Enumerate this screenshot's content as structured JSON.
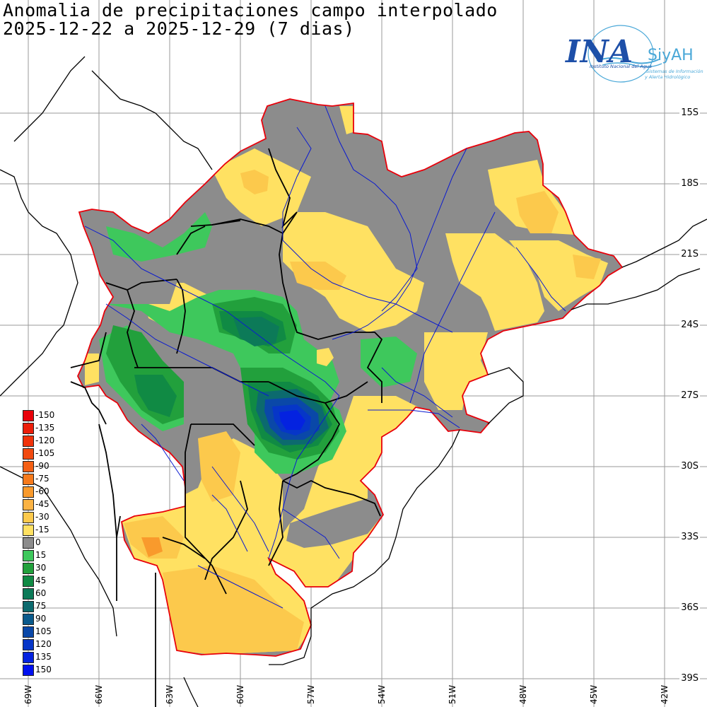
{
  "title_line1": "Anomalia de precipitaciones campo interpolado",
  "title_line2": "2025-12-22 a 2025-12-29 (7 dias)",
  "logo": {
    "wordmark": "INA",
    "siyah": "SiyAH",
    "institute": "Instituto Nacional del Agua",
    "system_line1": "Sistemas de Información",
    "system_line2": "y Alerta Hidrológico"
  },
  "lat_labels": [
    "15S",
    "18S",
    "21S",
    "24S",
    "27S",
    "30S",
    "33S",
    "36S",
    "39S"
  ],
  "lon_labels": [
    "69W",
    "66W",
    "63W",
    "60W",
    "57W",
    "54W",
    "51W",
    "48W",
    "45W",
    "42W"
  ],
  "legend": [
    {
      "label": "-150",
      "color": "#e8000a"
    },
    {
      "label": "-135",
      "color": "#ec1e0a"
    },
    {
      "label": "-120",
      "color": "#f0320a"
    },
    {
      "label": "-105",
      "color": "#f24a10"
    },
    {
      "label": "-90",
      "color": "#f45f14"
    },
    {
      "label": "-75",
      "color": "#f67a1c"
    },
    {
      "label": "-60",
      "color": "#f99a2c"
    },
    {
      "label": "-45",
      "color": "#fbb344"
    },
    {
      "label": "-30",
      "color": "#fcc94c"
    },
    {
      "label": "-15",
      "color": "#ffe162"
    },
    {
      "label": "0",
      "color": "#8c8c8c"
    },
    {
      "label": "15",
      "color": "#3ec85c"
    },
    {
      "label": "30",
      "color": "#22a03c"
    },
    {
      "label": "45",
      "color": "#108a44"
    },
    {
      "label": "60",
      "color": "#0c7a58"
    },
    {
      "label": "75",
      "color": "#0c6a6e"
    },
    {
      "label": "90",
      "color": "#0a5a8c"
    },
    {
      "label": "105",
      "color": "#0a48a8"
    },
    {
      "label": "120",
      "color": "#0636c8"
    },
    {
      "label": "135",
      "color": "#0422e0"
    },
    {
      "label": "150",
      "color": "#0010f0"
    }
  ],
  "colors": {
    "basin_outline": "#e8000a",
    "rivers": "#0a1ad0",
    "borders": "#000000",
    "coast": "#000000",
    "grid": "#9a9a9a",
    "logo_blue": "#1d4fa8",
    "logo_light": "#4aa8d8"
  }
}
